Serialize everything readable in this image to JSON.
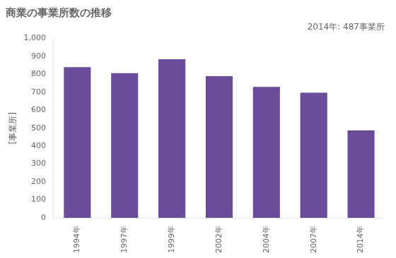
{
  "chart_data": {
    "type": "bar",
    "title": "商業の事業所数の推移",
    "ylabel": "[事業所]",
    "annotation": "2014年: 487事業所",
    "categories": [
      "1994年",
      "1997年",
      "1999年",
      "2002年",
      "2004年",
      "2007年",
      "2014年"
    ],
    "values": [
      840,
      806,
      884,
      789,
      730,
      697,
      487
    ],
    "color": "#6b4c9a",
    "ylim": [
      0,
      1000
    ],
    "yticks": [
      0,
      100,
      200,
      300,
      400,
      500,
      600,
      700,
      800,
      900,
      {
        "value": 1000,
        "label": "1,000"
      }
    ],
    "grid": false
  }
}
